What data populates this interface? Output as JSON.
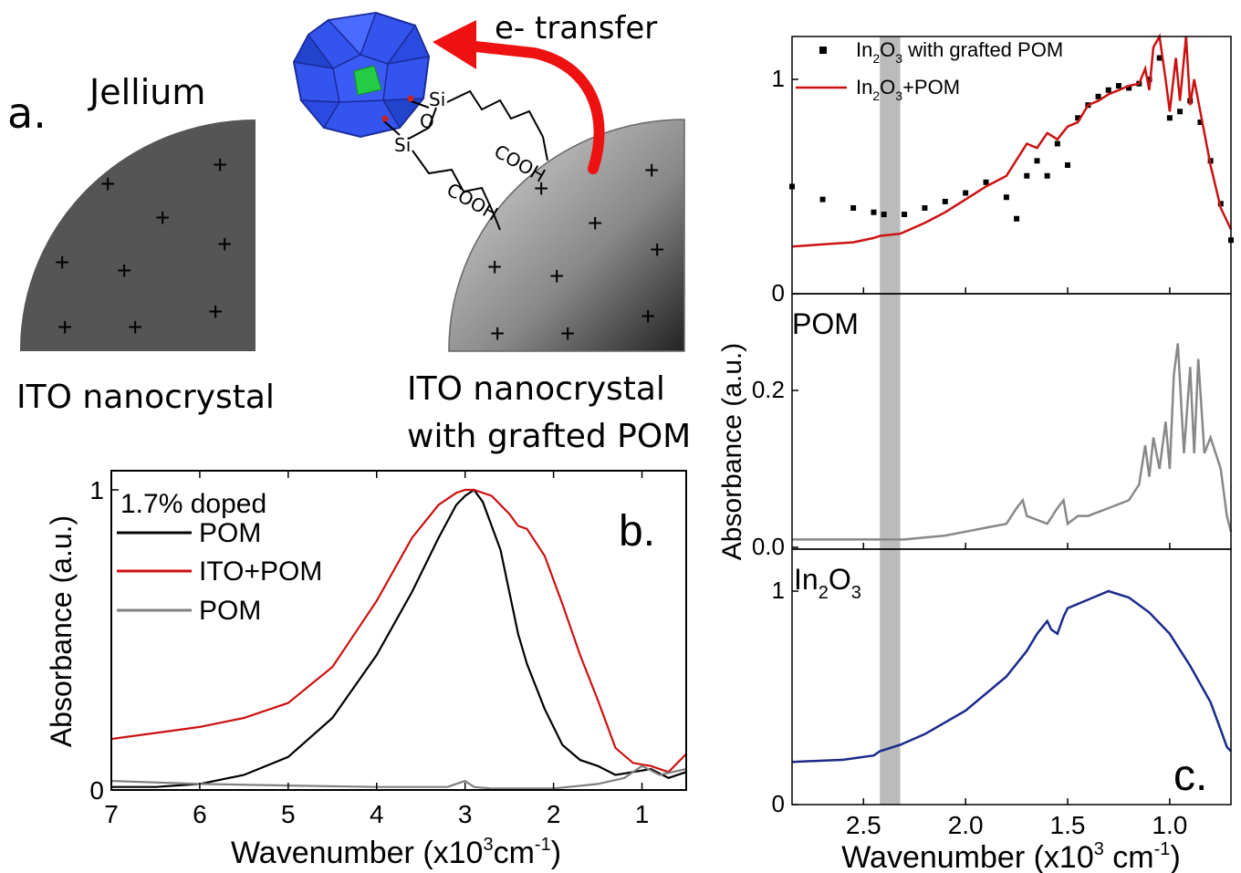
{
  "panel_a": {
    "panel_label": "a.",
    "jellium_label": "Jellium",
    "ito_label": "ITO nanocrystal",
    "ito_pom_label_line1": "ITO nanocrystal",
    "ito_pom_label_line2": "with grafted POM",
    "transfer_label": "e- transfer",
    "linker_labels": [
      "Si",
      "O",
      "Si",
      "COOH",
      "COOH"
    ],
    "colors": {
      "jellium": "#555555",
      "arrow": "#ee1111",
      "pom": "#3355ee",
      "pom_center": "#22cc44"
    }
  },
  "chart_data": [
    {
      "id": "b",
      "type": "line",
      "panel_label": "b.",
      "title": "",
      "xlabel": "Wavenumber (x10",
      "xlabel_sup": "3",
      "xlabel_unit": "cm",
      "xlabel_unit_sup": "-1",
      "xlabel_end": ")",
      "ylabel": "Absorbance (a.u.)",
      "xlim": [
        7,
        0.5
      ],
      "ylim": [
        0,
        1
      ],
      "xticks": [
        7,
        6,
        5,
        4,
        3,
        2,
        1
      ],
      "yticks": [
        0,
        1
      ],
      "legend_title": "1.7% doped",
      "legend_position": "top-left",
      "series": [
        {
          "name": "POM",
          "color": "#000000",
          "x": [
            7,
            6.5,
            6,
            5.5,
            5,
            4.5,
            4,
            3.6,
            3.3,
            3.1,
            3.0,
            2.9,
            2.8,
            2.6,
            2.4,
            2.3,
            2.1,
            1.9,
            1.7,
            1.5,
            1.3,
            1.1,
            0.9,
            0.7,
            0.5
          ],
          "y": [
            0.01,
            0.01,
            0.02,
            0.05,
            0.11,
            0.24,
            0.45,
            0.66,
            0.84,
            0.95,
            0.98,
            1.0,
            0.96,
            0.8,
            0.52,
            0.42,
            0.27,
            0.15,
            0.1,
            0.08,
            0.05,
            0.06,
            0.07,
            0.04,
            0.06
          ]
        },
        {
          "name": "ITO+POM",
          "color": "#cc1111",
          "x": [
            7,
            6.5,
            6,
            5.5,
            5,
            4.5,
            4,
            3.6,
            3.3,
            3.1,
            3.0,
            2.9,
            2.7,
            2.5,
            2.4,
            2.3,
            2.1,
            1.9,
            1.7,
            1.5,
            1.3,
            1.1,
            0.9,
            0.7,
            0.5
          ],
          "y": [
            0.17,
            0.19,
            0.21,
            0.24,
            0.29,
            0.41,
            0.63,
            0.84,
            0.95,
            0.99,
            1.0,
            1.0,
            0.98,
            0.92,
            0.88,
            0.87,
            0.78,
            0.62,
            0.45,
            0.3,
            0.14,
            0.09,
            0.08,
            0.06,
            0.12
          ]
        },
        {
          "name": "POM",
          "color": "#808080",
          "x": [
            7,
            6,
            5,
            4,
            3.2,
            3.0,
            2.9,
            2.7,
            2.5,
            2,
            1.5,
            1.2,
            1.0,
            0.8,
            0.5
          ],
          "y": [
            0.03,
            0.02,
            0.015,
            0.01,
            0.01,
            0.03,
            0.01,
            0.005,
            0.005,
            0.005,
            0.02,
            0.04,
            0.08,
            0.05,
            0.07
          ]
        }
      ]
    },
    {
      "id": "c",
      "type": "line",
      "panel_label": "c.",
      "title": "",
      "xlabel": "Wavenumber (x10",
      "xlabel_sup": "3",
      "xlabel_unit": " cm",
      "xlabel_unit_sup": "-1",
      "xlabel_end": ")",
      "ylabel": "Absorbance (a.u.)",
      "xlim": [
        2.85,
        0.7
      ],
      "xticks": [
        2.5,
        2.0,
        1.5,
        1.0
      ],
      "xtick_labels": [
        "2.5",
        "2.0",
        "1.5",
        "1.0"
      ],
      "shaded_band": {
        "x_from": 2.42,
        "x_to": 2.32,
        "color": "#bbbbbb"
      },
      "subplots": [
        {
          "ylim": [
            0,
            1.2
          ],
          "yticks": [
            0,
            1
          ],
          "ytick_labels": [
            "0",
            "1"
          ],
          "legend_position": "top-left",
          "legend": [
            {
              "label": "In",
              "sub1": "2",
              "mid": "O",
              "sub2": "3",
              "rest": " with grafted POM",
              "marker": "square",
              "color": "#000000"
            },
            {
              "label": "In",
              "sub1": "2",
              "mid": "O",
              "sub2": "3",
              "rest": "+POM",
              "marker": "line",
              "color": "#cc1111"
            }
          ],
          "series": [
            {
              "name": "In2O3 with grafted POM",
              "style": "points",
              "color": "#000000",
              "x": [
                2.85,
                2.7,
                2.55,
                2.45,
                2.4,
                2.3,
                2.2,
                2.1,
                2.0,
                1.9,
                1.8,
                1.75,
                1.7,
                1.65,
                1.6,
                1.55,
                1.5,
                1.45,
                1.4,
                1.35,
                1.3,
                1.25,
                1.2,
                1.15,
                1.1,
                1.05,
                1.0,
                0.95,
                0.9,
                0.85,
                0.8,
                0.75,
                0.7
              ],
              "y": [
                0.5,
                0.44,
                0.4,
                0.38,
                0.37,
                0.37,
                0.4,
                0.43,
                0.47,
                0.52,
                0.45,
                0.35,
                0.55,
                0.62,
                0.55,
                0.7,
                0.6,
                0.82,
                0.88,
                0.92,
                0.95,
                0.97,
                0.96,
                0.98,
                1.0,
                1.1,
                0.82,
                0.85,
                0.9,
                0.8,
                0.62,
                0.42,
                0.25
              ]
            },
            {
              "name": "In2O3+POM",
              "style": "line",
              "color": "#cc1111",
              "x": [
                2.85,
                2.7,
                2.55,
                2.45,
                2.42,
                2.32,
                2.2,
                2.1,
                2.0,
                1.9,
                1.8,
                1.7,
                1.65,
                1.6,
                1.55,
                1.5,
                1.45,
                1.4,
                1.35,
                1.3,
                1.25,
                1.2,
                1.15,
                1.12,
                1.1,
                1.08,
                1.05,
                1.02,
                1.0,
                0.97,
                0.95,
                0.92,
                0.9,
                0.88,
                0.85,
                0.8,
                0.75,
                0.7
              ],
              "y": [
                0.22,
                0.23,
                0.24,
                0.26,
                0.27,
                0.28,
                0.33,
                0.38,
                0.44,
                0.5,
                0.55,
                0.7,
                0.68,
                0.75,
                0.72,
                0.78,
                0.8,
                0.88,
                0.9,
                0.93,
                0.95,
                0.97,
                0.98,
                1.05,
                0.95,
                1.15,
                1.2,
                1.0,
                0.85,
                1.1,
                0.9,
                1.2,
                0.88,
                1.0,
                0.85,
                0.6,
                0.4,
                0.3
              ]
            }
          ]
        },
        {
          "label": "POM",
          "ylim": [
            0,
            0.32
          ],
          "yticks": [
            0.0,
            0.2
          ],
          "ytick_labels": [
            "0.0",
            "0.2"
          ],
          "series": [
            {
              "name": "POM",
              "style": "line",
              "color": "#888888",
              "x": [
                2.85,
                2.6,
                2.4,
                2.3,
                2.1,
                2.0,
                1.9,
                1.8,
                1.75,
                1.72,
                1.7,
                1.6,
                1.55,
                1.52,
                1.5,
                1.45,
                1.4,
                1.3,
                1.2,
                1.15,
                1.12,
                1.1,
                1.08,
                1.05,
                1.02,
                1.0,
                0.98,
                0.96,
                0.93,
                0.9,
                0.88,
                0.86,
                0.83,
                0.8,
                0.75,
                0.72,
                0.7
              ],
              "y": [
                0.01,
                0.01,
                0.01,
                0.01,
                0.015,
                0.02,
                0.025,
                0.03,
                0.05,
                0.06,
                0.04,
                0.03,
                0.05,
                0.06,
                0.03,
                0.04,
                0.04,
                0.05,
                0.06,
                0.08,
                0.13,
                0.09,
                0.14,
                0.1,
                0.16,
                0.1,
                0.22,
                0.26,
                0.12,
                0.23,
                0.12,
                0.24,
                0.12,
                0.14,
                0.1,
                0.04,
                0.02
              ]
            }
          ]
        },
        {
          "label": "In",
          "label_sub1": "2",
          "label_mid": "O",
          "label_sub2": "3",
          "ylim": [
            0,
            1.2
          ],
          "yticks": [
            0,
            1
          ],
          "ytick_labels": [
            "0",
            "1"
          ],
          "series": [
            {
              "name": "In2O3",
              "style": "line",
              "color": "#1a2a8a",
              "x": [
                2.85,
                2.6,
                2.45,
                2.42,
                2.32,
                2.2,
                2.0,
                1.8,
                1.7,
                1.65,
                1.6,
                1.58,
                1.55,
                1.52,
                1.5,
                1.4,
                1.3,
                1.2,
                1.1,
                1.0,
                0.9,
                0.8,
                0.75,
                0.72,
                0.7
              ],
              "y": [
                0.2,
                0.21,
                0.23,
                0.25,
                0.28,
                0.33,
                0.44,
                0.6,
                0.72,
                0.8,
                0.86,
                0.82,
                0.8,
                0.88,
                0.92,
                0.96,
                1.0,
                0.97,
                0.9,
                0.8,
                0.65,
                0.48,
                0.35,
                0.27,
                0.25
              ]
            }
          ]
        }
      ]
    }
  ]
}
